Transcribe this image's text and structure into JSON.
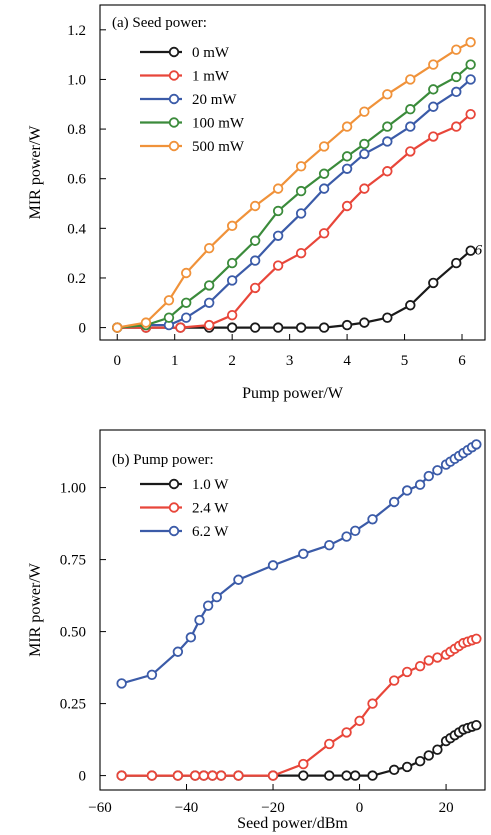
{
  "chart_data": [
    {
      "type": "line",
      "panel_label": "(a) Seed power:",
      "xlabel": "Pump power/W",
      "ylabel": "MIR power/W",
      "xlim": [
        -0.3,
        6.4
      ],
      "ylim": [
        -0.05,
        1.3
      ],
      "xticks": [
        0,
        1,
        2,
        3,
        4,
        5,
        6
      ],
      "xtick_labels": [
        "0",
        "1",
        "2",
        "3",
        "4",
        "5",
        "6"
      ],
      "yticks": [
        0,
        0.2,
        0.4,
        0.6,
        0.8,
        1.0,
        1.2
      ],
      "ytick_labels": [
        "0",
        "0.2",
        "0.4",
        "0.6",
        "0.8",
        "1.0",
        "1.2"
      ],
      "legend_position": "top-left",
      "annotation": "6",
      "grid": false,
      "series": [
        {
          "name": "0 mW",
          "color": "#1a1a1a",
          "x": [
            0,
            0.5,
            1.1,
            1.6,
            2.0,
            2.4,
            2.8,
            3.2,
            3.6,
            4.0,
            4.3,
            4.7,
            5.1,
            5.5,
            5.9,
            6.15
          ],
          "y": [
            0,
            0,
            0,
            0,
            0,
            0,
            0,
            0,
            0,
            0.01,
            0.02,
            0.04,
            0.09,
            0.18,
            0.26,
            0.31
          ]
        },
        {
          "name": "1 mW",
          "color": "#e8463a",
          "x": [
            0,
            0.5,
            1.1,
            1.6,
            2.0,
            2.4,
            2.8,
            3.2,
            3.6,
            4.0,
            4.3,
            4.7,
            5.1,
            5.5,
            5.9,
            6.15
          ],
          "y": [
            0,
            0,
            0,
            0.01,
            0.05,
            0.16,
            0.25,
            0.3,
            0.38,
            0.49,
            0.56,
            0.63,
            0.71,
            0.77,
            0.81,
            0.86
          ]
        },
        {
          "name": "20 mW",
          "color": "#3b5ba8",
          "x": [
            0,
            0.5,
            0.9,
            1.2,
            1.6,
            2.0,
            2.4,
            2.8,
            3.2,
            3.6,
            4.0,
            4.3,
            4.7,
            5.1,
            5.5,
            5.9,
            6.15
          ],
          "y": [
            0,
            0.01,
            0.01,
            0.04,
            0.1,
            0.19,
            0.27,
            0.37,
            0.46,
            0.56,
            0.64,
            0.7,
            0.75,
            0.81,
            0.89,
            0.95,
            1.0
          ]
        },
        {
          "name": "100 mW",
          "color": "#3b8b3b",
          "x": [
            0,
            0.5,
            0.9,
            1.2,
            1.6,
            2.0,
            2.4,
            2.8,
            3.2,
            3.6,
            4.0,
            4.3,
            4.7,
            5.1,
            5.5,
            5.9,
            6.15
          ],
          "y": [
            0,
            0.01,
            0.04,
            0.1,
            0.17,
            0.26,
            0.35,
            0.47,
            0.55,
            0.62,
            0.69,
            0.74,
            0.81,
            0.88,
            0.96,
            1.01,
            1.06
          ]
        },
        {
          "name": "500 mW",
          "color": "#f0923a",
          "x": [
            0,
            0.5,
            0.9,
            1.2,
            1.6,
            2.0,
            2.4,
            2.8,
            3.2,
            3.6,
            4.0,
            4.3,
            4.7,
            5.1,
            5.5,
            5.9,
            6.15
          ],
          "y": [
            0,
            0.02,
            0.11,
            0.22,
            0.32,
            0.41,
            0.49,
            0.56,
            0.65,
            0.73,
            0.81,
            0.87,
            0.94,
            1.0,
            1.06,
            1.12,
            1.15
          ]
        }
      ]
    },
    {
      "type": "line",
      "panel_label": "(b) Pump power:",
      "xlabel": "Seed power/dBm",
      "ylabel": "MIR power/W",
      "xlim": [
        -60,
        29
      ],
      "ylim": [
        -0.05,
        1.2
      ],
      "xticks": [
        -60,
        -40,
        -20,
        0,
        20
      ],
      "xtick_labels": [
        "−60",
        "−40",
        "−20",
        "0",
        "20"
      ],
      "yticks": [
        0,
        0.25,
        0.5,
        0.75,
        1.0
      ],
      "ytick_labels": [
        "0",
        "0.25",
        "0.50",
        "0.75",
        "1.00"
      ],
      "legend_position": "top-left",
      "grid": false,
      "series": [
        {
          "name": "1.0 W",
          "color": "#1a1a1a",
          "x": [
            -55,
            -48,
            -42,
            -38,
            -36,
            -34,
            -32,
            -28,
            -20,
            -13,
            -7,
            -3,
            -1,
            3,
            8,
            11,
            14,
            16,
            18,
            20,
            21,
            22,
            23,
            24,
            25,
            26,
            27
          ],
          "y": [
            0,
            0,
            0,
            0,
            0,
            0,
            0,
            0,
            0,
            0,
            0,
            0,
            0,
            0,
            0.02,
            0.03,
            0.05,
            0.07,
            0.09,
            0.12,
            0.13,
            0.14,
            0.15,
            0.16,
            0.165,
            0.17,
            0.175
          ]
        },
        {
          "name": "2.4 W",
          "color": "#e8463a",
          "x": [
            -55,
            -48,
            -42,
            -38,
            -36,
            -34,
            -32,
            -28,
            -20,
            -13,
            -7,
            -3,
            0,
            3,
            8,
            11,
            14,
            16,
            18,
            20,
            21,
            22,
            23,
            24,
            25,
            26,
            27
          ],
          "y": [
            0,
            0,
            0,
            0,
            0,
            0,
            0,
            0,
            0.0,
            0.04,
            0.11,
            0.15,
            0.19,
            0.25,
            0.33,
            0.36,
            0.38,
            0.4,
            0.41,
            0.42,
            0.43,
            0.44,
            0.45,
            0.46,
            0.465,
            0.47,
            0.475
          ]
        },
        {
          "name": "6.2 W",
          "color": "#3b5ba8",
          "x": [
            -55,
            -48,
            -42,
            -39,
            -37,
            -35,
            -33,
            -28,
            -20,
            -13,
            -7,
            -3,
            -1,
            3,
            8,
            11,
            14,
            16,
            18,
            20,
            21,
            22,
            23,
            24,
            25,
            26,
            27
          ],
          "y": [
            0.32,
            0.35,
            0.43,
            0.48,
            0.54,
            0.59,
            0.62,
            0.68,
            0.73,
            0.77,
            0.8,
            0.83,
            0.85,
            0.89,
            0.95,
            0.99,
            1.01,
            1.04,
            1.06,
            1.08,
            1.09,
            1.1,
            1.11,
            1.12,
            1.13,
            1.14,
            1.15
          ]
        }
      ]
    }
  ]
}
